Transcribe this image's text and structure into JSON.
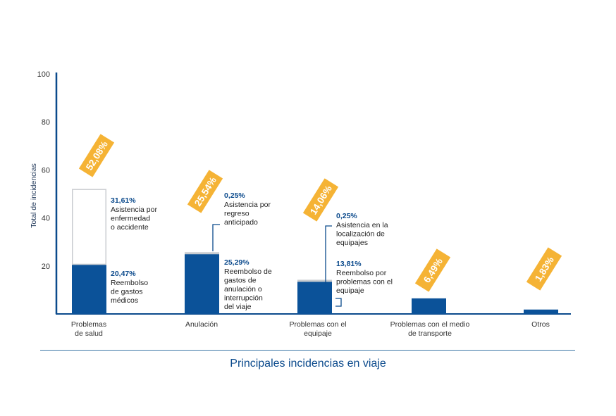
{
  "chart_data": {
    "type": "bar",
    "stacked": true,
    "title": "Principales incidencias en viaje",
    "ylabel": "Total de incidencias",
    "xlabel": "",
    "ylim": [
      0,
      100
    ],
    "yticks": [
      "100",
      "80",
      "60",
      "40",
      "20"
    ],
    "categories": [
      "Problemas\nde salud",
      "Anulación",
      "Problemas con el\nequipaje",
      "Problemas con el medio\nde transporte",
      "Otros"
    ],
    "totals": [
      "52,08%",
      "25,54%",
      "14,06%",
      "6,49%",
      "1,83%"
    ],
    "bars": [
      {
        "segments": [
          {
            "value": 20.47,
            "kind": "dark",
            "pct": "20,47%",
            "label": "Reembolso\nde gastos\nmédicos"
          },
          {
            "value": 31.61,
            "kind": "light",
            "pct": "31,61%",
            "label": "Asistencia por\nenfermedad\no accidente"
          }
        ]
      },
      {
        "segments": [
          {
            "value": 25.29,
            "kind": "dark",
            "pct": "25,29%",
            "label": "Reembolso de\ngastos de\nanulación o\ninterrupción\ndel viaje"
          },
          {
            "value": 0.25,
            "kind": "light",
            "pct": "0,25%",
            "label": "Asistencia por\nregreso\nanticipado"
          }
        ]
      },
      {
        "segments": [
          {
            "value": 13.81,
            "kind": "dark",
            "pct": "13,81%",
            "label": "Reembolso por\nproblemas con el\nequipaje"
          },
          {
            "value": 0.25,
            "kind": "light",
            "pct": "0,25%",
            "label": "Asistencia en la\nlocalización de\nequipajes"
          }
        ]
      },
      {
        "segments": [
          {
            "value": 6.49,
            "kind": "dark"
          }
        ]
      },
      {
        "segments": [
          {
            "value": 1.83,
            "kind": "dark"
          }
        ]
      }
    ],
    "colors": {
      "dark": "#0b5299",
      "light_fill": "#ffffff",
      "light_stroke": "#c9ccd0",
      "badge": "#f5b335",
      "axis": "#0b4a8c"
    }
  }
}
